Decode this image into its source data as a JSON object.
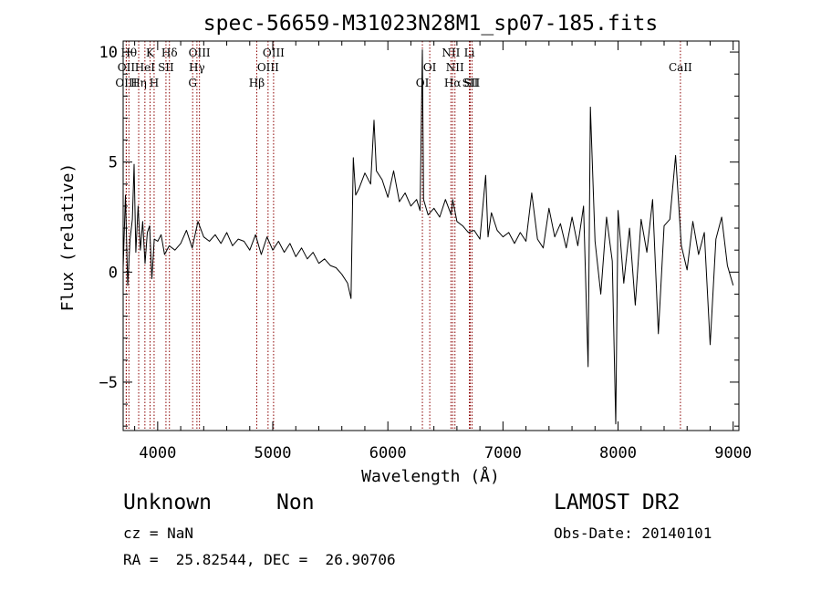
{
  "chart_data": {
    "type": "line",
    "title": "spec-56659-M31023N28M1_sp07-185.fits",
    "xlabel": "Wavelength (Å)",
    "ylabel": "Flux (relative)",
    "xlim": [
      3700,
      9050
    ],
    "ylim": [
      -7.2,
      10.5
    ],
    "xticks": [
      4000,
      5000,
      6000,
      7000,
      8000,
      9000
    ],
    "yticks": [
      -5,
      0,
      5,
      10
    ],
    "grid": false,
    "line_color": "#000000",
    "marker_line_color": "#8b0000",
    "spectrum": {
      "name": "",
      "points": [
        [
          3700,
          0.2
        ],
        [
          3720,
          3.5
        ],
        [
          3740,
          -0.6
        ],
        [
          3760,
          1.5
        ],
        [
          3780,
          2.4
        ],
        [
          3795,
          4.9
        ],
        [
          3810,
          0.9
        ],
        [
          3830,
          3.0
        ],
        [
          3850,
          1.0
        ],
        [
          3870,
          2.3
        ],
        [
          3890,
          0.4
        ],
        [
          3910,
          1.8
        ],
        [
          3930,
          2.1
        ],
        [
          3950,
          -0.3
        ],
        [
          3970,
          1.5
        ],
        [
          4000,
          1.4
        ],
        [
          4030,
          1.7
        ],
        [
          4060,
          0.8
        ],
        [
          4100,
          1.2
        ],
        [
          4150,
          1.0
        ],
        [
          4200,
          1.3
        ],
        [
          4250,
          1.9
        ],
        [
          4300,
          1.1
        ],
        [
          4350,
          2.3
        ],
        [
          4400,
          1.6
        ],
        [
          4450,
          1.4
        ],
        [
          4500,
          1.7
        ],
        [
          4550,
          1.3
        ],
        [
          4600,
          1.8
        ],
        [
          4650,
          1.2
        ],
        [
          4700,
          1.5
        ],
        [
          4750,
          1.4
        ],
        [
          4800,
          1.0
        ],
        [
          4850,
          1.7
        ],
        [
          4900,
          0.8
        ],
        [
          4950,
          1.6
        ],
        [
          5000,
          1.0
        ],
        [
          5050,
          1.4
        ],
        [
          5100,
          0.9
        ],
        [
          5150,
          1.3
        ],
        [
          5200,
          0.7
        ],
        [
          5250,
          1.1
        ],
        [
          5300,
          0.6
        ],
        [
          5350,
          0.9
        ],
        [
          5400,
          0.4
        ],
        [
          5450,
          0.6
        ],
        [
          5500,
          0.3
        ],
        [
          5550,
          0.2
        ],
        [
          5600,
          -0.1
        ],
        [
          5650,
          -0.5
        ],
        [
          5680,
          -1.2
        ],
        [
          5700,
          5.2
        ],
        [
          5720,
          3.5
        ],
        [
          5750,
          3.8
        ],
        [
          5800,
          4.5
        ],
        [
          5850,
          4.0
        ],
        [
          5880,
          6.9
        ],
        [
          5900,
          4.6
        ],
        [
          5950,
          4.2
        ],
        [
          6000,
          3.4
        ],
        [
          6050,
          4.6
        ],
        [
          6100,
          3.2
        ],
        [
          6150,
          3.6
        ],
        [
          6200,
          3.0
        ],
        [
          6250,
          3.3
        ],
        [
          6280,
          2.8
        ],
        [
          6300,
          10.1
        ],
        [
          6310,
          3.3
        ],
        [
          6350,
          2.6
        ],
        [
          6400,
          2.9
        ],
        [
          6450,
          2.5
        ],
        [
          6500,
          3.3
        ],
        [
          6550,
          2.6
        ],
        [
          6563,
          3.3
        ],
        [
          6600,
          2.3
        ],
        [
          6650,
          2.1
        ],
        [
          6700,
          1.8
        ],
        [
          6750,
          1.9
        ],
        [
          6800,
          1.5
        ],
        [
          6850,
          4.4
        ],
        [
          6870,
          1.6
        ],
        [
          6900,
          2.7
        ],
        [
          6950,
          1.9
        ],
        [
          7000,
          1.6
        ],
        [
          7050,
          1.8
        ],
        [
          7100,
          1.3
        ],
        [
          7150,
          1.8
        ],
        [
          7200,
          1.4
        ],
        [
          7250,
          3.6
        ],
        [
          7300,
          1.5
        ],
        [
          7350,
          1.1
        ],
        [
          7400,
          2.9
        ],
        [
          7450,
          1.6
        ],
        [
          7500,
          2.2
        ],
        [
          7550,
          1.1
        ],
        [
          7600,
          2.5
        ],
        [
          7650,
          1.2
        ],
        [
          7700,
          3.0
        ],
        [
          7740,
          -4.3
        ],
        [
          7760,
          7.5
        ],
        [
          7800,
          1.4
        ],
        [
          7850,
          -1.0
        ],
        [
          7900,
          2.5
        ],
        [
          7950,
          0.5
        ],
        [
          7980,
          -6.9
        ],
        [
          8000,
          2.8
        ],
        [
          8050,
          -0.5
        ],
        [
          8100,
          2.0
        ],
        [
          8150,
          -1.5
        ],
        [
          8200,
          2.4
        ],
        [
          8250,
          0.9
        ],
        [
          8300,
          3.3
        ],
        [
          8350,
          -2.8
        ],
        [
          8400,
          2.1
        ],
        [
          8450,
          2.4
        ],
        [
          8500,
          5.3
        ],
        [
          8550,
          1.2
        ],
        [
          8600,
          0.1
        ],
        [
          8650,
          2.3
        ],
        [
          8700,
          0.8
        ],
        [
          8750,
          1.8
        ],
        [
          8800,
          -3.3
        ],
        [
          8850,
          1.5
        ],
        [
          8900,
          2.5
        ],
        [
          8950,
          0.3
        ],
        [
          9000,
          -0.6
        ]
      ]
    },
    "line_markers": [
      {
        "label": "OII",
        "wavelength": 3727,
        "row": 1
      },
      {
        "label": "OIII",
        "wavelength": 3727,
        "row": 2
      },
      {
        "label": "Hθ",
        "wavelength": 3750,
        "row": 0
      },
      {
        "label": "Hη",
        "wavelength": 3835,
        "row": 2
      },
      {
        "label": "HeI",
        "wavelength": 3889,
        "row": 1
      },
      {
        "label": "K",
        "wavelength": 3934,
        "row": 0
      },
      {
        "label": "H",
        "wavelength": 3969,
        "row": 2
      },
      {
        "label": "SII",
        "wavelength": 4072,
        "row": 1
      },
      {
        "label": "Hδ",
        "wavelength": 4102,
        "row": 0
      },
      {
        "label": "G",
        "wavelength": 4304,
        "row": 2
      },
      {
        "label": "Hγ",
        "wavelength": 4341,
        "row": 1
      },
      {
        "label": "OIII",
        "wavelength": 4363,
        "row": 0
      },
      {
        "label": "Hβ",
        "wavelength": 4861,
        "row": 2
      },
      {
        "label": "OIII",
        "wavelength": 4959,
        "row": 1
      },
      {
        "label": "OIII",
        "wavelength": 5007,
        "row": 0
      },
      {
        "label": "OI",
        "wavelength": 6300,
        "row": 2
      },
      {
        "label": "OI",
        "wavelength": 6364,
        "row": 1
      },
      {
        "label": "NII",
        "wavelength": 6548,
        "row": 0
      },
      {
        "label": "Hα",
        "wavelength": 6563,
        "row": 2
      },
      {
        "label": "NII",
        "wavelength": 6583,
        "row": 1
      },
      {
        "label": "Li",
        "wavelength": 6708,
        "row": 0
      },
      {
        "label": "SII",
        "wavelength": 6716,
        "row": 2
      },
      {
        "label": "SII",
        "wavelength": 6731,
        "row": 2
      },
      {
        "label": "CaII",
        "wavelength": 8542,
        "row": 1
      }
    ]
  },
  "info": {
    "object_class": "Unknown",
    "subclass": "Non",
    "survey": "LAMOST DR2",
    "cz": "cz = NaN",
    "obs_date": "Obs-Date: 20140101",
    "coords": "RA =  25.82544, DEC =  26.90706"
  }
}
